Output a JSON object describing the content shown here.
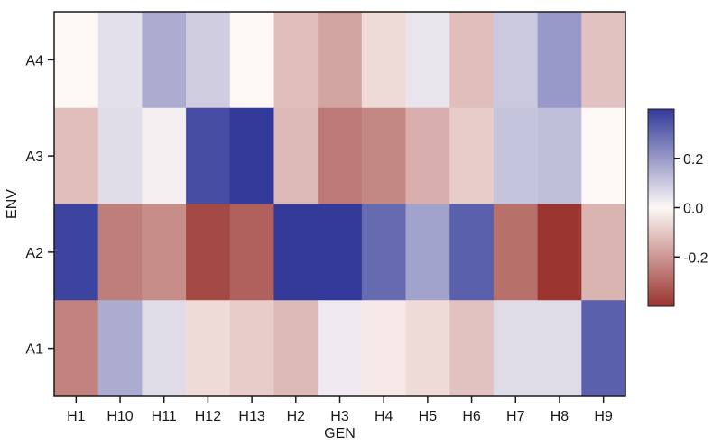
{
  "chart_data": {
    "type": "heatmap",
    "xlabel": "GEN",
    "ylabel": "ENV",
    "x_categories": [
      "H1",
      "H10",
      "H11",
      "H12",
      "H13",
      "H2",
      "H3",
      "H4",
      "H5",
      "H6",
      "H7",
      "H8",
      "H9"
    ],
    "y_categories": [
      "A4",
      "A3",
      "A2",
      "A1"
    ],
    "values": [
      [
        0.0,
        0.05,
        0.16,
        0.09,
        0.0,
        -0.12,
        -0.17,
        -0.06,
        0.04,
        -0.12,
        0.1,
        0.2,
        -0.11
      ],
      [
        -0.12,
        0.06,
        0.02,
        0.36,
        0.4,
        -0.13,
        -0.26,
        -0.23,
        -0.15,
        -0.09,
        0.11,
        0.12,
        0.0
      ],
      [
        0.38,
        -0.25,
        -0.22,
        -0.36,
        -0.31,
        0.4,
        0.4,
        0.3,
        0.18,
        0.32,
        -0.28,
        -0.4,
        -0.14
      ],
      [
        -0.24,
        0.16,
        0.06,
        -0.06,
        -0.09,
        -0.13,
        0.03,
        -0.03,
        -0.06,
        -0.11,
        0.06,
        0.06,
        0.32
      ]
    ],
    "colorbar": {
      "ticks": [
        0.2,
        0.0,
        -0.2
      ],
      "tick_labels": [
        "0.2",
        "0.0",
        "-0.2"
      ],
      "range": [
        -0.4,
        0.4
      ],
      "colors": {
        "low": "#9a3530",
        "mid": "#fdf8f6",
        "high": "#333a9a"
      }
    },
    "grid": false
  }
}
